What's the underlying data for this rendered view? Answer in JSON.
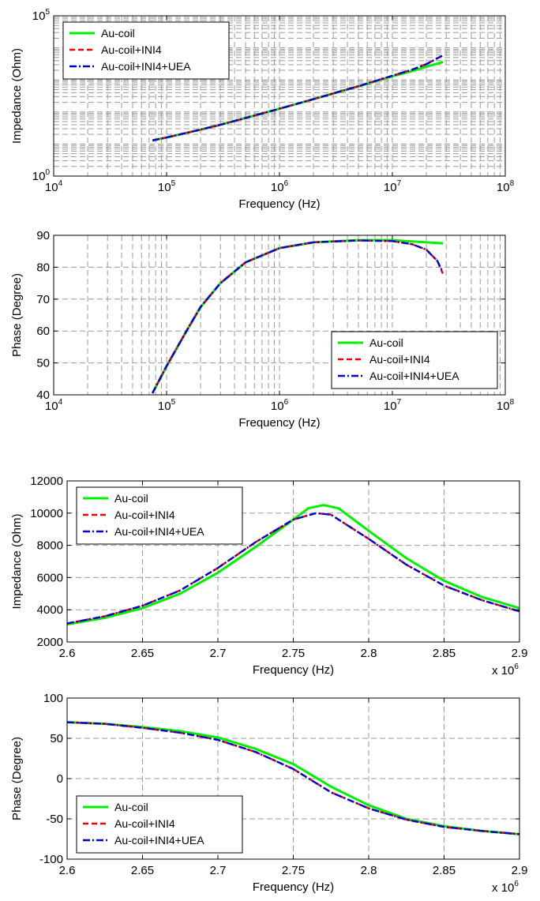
{
  "colors": {
    "series": [
      "#00ee00",
      "#ee0000",
      "#0000cc"
    ],
    "grid": "#9a9a9a",
    "axes": "#000000",
    "background": "#ffffff"
  },
  "chart_data": [
    {
      "type": "line",
      "xscale": "log",
      "yscale": "log",
      "xlim": [
        10000,
        100000000
      ],
      "ylim": [
        1,
        100000
      ],
      "xlabel": "Frequency (Hz)",
      "ylabel": "Impedance (Ohm)",
      "xticks": [
        10000,
        100000,
        1000000,
        10000000,
        100000000
      ],
      "xtick_labels": [
        {
          "base": "10",
          "exp": "4"
        },
        {
          "base": "10",
          "exp": "5"
        },
        {
          "base": "10",
          "exp": "6"
        },
        {
          "base": "10",
          "exp": "7"
        },
        {
          "base": "10",
          "exp": "8"
        }
      ],
      "yticks": [
        1,
        100000
      ],
      "ytick_labels": [
        {
          "base": "10",
          "exp": "0"
        },
        {
          "base": "10",
          "exp": "5"
        }
      ],
      "x_multiplier": "",
      "grid": true,
      "legend_position": "top-left",
      "legend": [
        "Au-coil",
        "Au-coil+INI4",
        "Au-coil+INI4+UEA"
      ],
      "series": [
        {
          "name": "Au-coil",
          "style": "solid",
          "x": [
            75000,
            100000,
            200000,
            300000,
            500000,
            1000000,
            2000000,
            5000000,
            10000000,
            15000000,
            20000000,
            28000000
          ],
          "y": [
            13,
            16,
            28,
            40,
            65,
            126,
            250,
            630,
            1300,
            1900,
            2600,
            3600
          ]
        },
        {
          "name": "Au-coil+INI4",
          "style": "dashed",
          "x": [
            75000,
            100000,
            200000,
            300000,
            500000,
            1000000,
            2000000,
            5000000,
            10000000,
            15000000,
            20000000,
            28000000
          ],
          "y": [
            13,
            16,
            28,
            40,
            65,
            126,
            250,
            640,
            1350,
            2100,
            3100,
            5800
          ]
        },
        {
          "name": "Au-coil+INI4+UEA",
          "style": "dashdot",
          "x": [
            75000,
            100000,
            200000,
            300000,
            500000,
            1000000,
            2000000,
            5000000,
            10000000,
            15000000,
            20000000,
            28000000
          ],
          "y": [
            13,
            16,
            28,
            40,
            65,
            126,
            250,
            640,
            1350,
            2100,
            3100,
            5800
          ]
        }
      ]
    },
    {
      "type": "line",
      "xscale": "log",
      "yscale": "linear",
      "xlim": [
        10000,
        100000000
      ],
      "ylim": [
        40,
        90
      ],
      "xlabel": "Frequency (Hz)",
      "ylabel": "Phase (Degree)",
      "xticks": [
        10000,
        100000,
        1000000,
        10000000,
        100000000
      ],
      "xtick_labels": [
        {
          "base": "10",
          "exp": "4"
        },
        {
          "base": "10",
          "exp": "5"
        },
        {
          "base": "10",
          "exp": "6"
        },
        {
          "base": "10",
          "exp": "7"
        },
        {
          "base": "10",
          "exp": "8"
        }
      ],
      "yticks": [
        40,
        50,
        60,
        70,
        80,
        90
      ],
      "ytick_labels": [
        {
          "base": "40",
          "exp": ""
        },
        {
          "base": "50",
          "exp": ""
        },
        {
          "base": "60",
          "exp": ""
        },
        {
          "base": "70",
          "exp": ""
        },
        {
          "base": "80",
          "exp": ""
        },
        {
          "base": "90",
          "exp": ""
        }
      ],
      "x_multiplier": "",
      "grid": true,
      "legend_position": "bottom-right",
      "legend": [
        "Au-coil",
        "Au-coil+INI4",
        "Au-coil+INI4+UEA"
      ],
      "series": [
        {
          "name": "Au-coil",
          "style": "solid",
          "x": [
            75000,
            100000,
            150000,
            200000,
            300000,
            500000,
            1000000,
            2000000,
            5000000,
            10000000,
            20000000,
            28000000
          ],
          "y": [
            40.5,
            49,
            60,
            67.5,
            75,
            81.5,
            86,
            87.8,
            88.5,
            88.5,
            87.8,
            87.5
          ]
        },
        {
          "name": "Au-coil+INI4",
          "style": "dashed",
          "x": [
            75000,
            100000,
            150000,
            200000,
            300000,
            500000,
            1000000,
            2000000,
            5000000,
            10000000,
            15000000,
            20000000,
            25000000,
            28000000
          ],
          "y": [
            40.5,
            49,
            60,
            67.5,
            75,
            81.5,
            86,
            87.8,
            88.4,
            88.2,
            87.2,
            85.5,
            82,
            78
          ]
        },
        {
          "name": "Au-coil+INI4+UEA",
          "style": "dashdot",
          "x": [
            75000,
            100000,
            150000,
            200000,
            300000,
            500000,
            1000000,
            2000000,
            5000000,
            10000000,
            15000000,
            20000000,
            25000000,
            28000000
          ],
          "y": [
            40.5,
            49,
            60,
            67.5,
            75,
            81.5,
            86,
            87.8,
            88.4,
            88.2,
            87.2,
            85.5,
            82,
            78.5
          ]
        }
      ]
    },
    {
      "type": "line",
      "xscale": "linear",
      "yscale": "linear",
      "xlim": [
        2.6,
        2.9
      ],
      "ylim": [
        2000,
        12000
      ],
      "xlabel": "Frequency (Hz)",
      "ylabel": "Impedance (Ohm)",
      "xticks": [
        2.6,
        2.65,
        2.7,
        2.75,
        2.8,
        2.85,
        2.9
      ],
      "xtick_labels": [
        {
          "base": "2.6",
          "exp": ""
        },
        {
          "base": "2.65",
          "exp": ""
        },
        {
          "base": "2.7",
          "exp": ""
        },
        {
          "base": "2.75",
          "exp": ""
        },
        {
          "base": "2.8",
          "exp": ""
        },
        {
          "base": "2.85",
          "exp": ""
        },
        {
          "base": "2.9",
          "exp": ""
        }
      ],
      "yticks": [
        2000,
        4000,
        6000,
        8000,
        10000,
        12000
      ],
      "ytick_labels": [
        {
          "base": "2000",
          "exp": ""
        },
        {
          "base": "4000",
          "exp": ""
        },
        {
          "base": "6000",
          "exp": ""
        },
        {
          "base": "8000",
          "exp": ""
        },
        {
          "base": "10000",
          "exp": ""
        },
        {
          "base": "12000",
          "exp": ""
        }
      ],
      "x_multiplier": {
        "base": "x 10",
        "exp": "6"
      },
      "grid": true,
      "legend_position": "top-left",
      "legend": [
        "Au-coil",
        "Au-coil+INI4",
        "Au-coil+INI4+UEA"
      ],
      "series": [
        {
          "name": "Au-coil",
          "style": "solid",
          "x": [
            2.6,
            2.625,
            2.65,
            2.675,
            2.7,
            2.725,
            2.75,
            2.76,
            2.77,
            2.78,
            2.8,
            2.825,
            2.85,
            2.875,
            2.9
          ],
          "y": [
            3100,
            3500,
            4100,
            5000,
            6300,
            7900,
            9600,
            10300,
            10500,
            10300,
            8900,
            7200,
            5800,
            4800,
            4100
          ]
        },
        {
          "name": "Au-coil+INI4",
          "style": "dashed",
          "x": [
            2.6,
            2.625,
            2.65,
            2.675,
            2.7,
            2.725,
            2.75,
            2.765,
            2.775,
            2.8,
            2.825,
            2.85,
            2.875,
            2.9
          ],
          "y": [
            3150,
            3600,
            4250,
            5200,
            6600,
            8200,
            9600,
            10000,
            9900,
            8400,
            6800,
            5500,
            4600,
            3900
          ]
        },
        {
          "name": "Au-coil+INI4+UEA",
          "style": "dashdot",
          "x": [
            2.6,
            2.625,
            2.65,
            2.675,
            2.7,
            2.725,
            2.75,
            2.765,
            2.775,
            2.8,
            2.825,
            2.85,
            2.875,
            2.9
          ],
          "y": [
            3150,
            3600,
            4250,
            5200,
            6600,
            8200,
            9600,
            10000,
            9900,
            8400,
            6800,
            5500,
            4600,
            3900
          ]
        }
      ]
    },
    {
      "type": "line",
      "xscale": "linear",
      "yscale": "linear",
      "xlim": [
        2.6,
        2.9
      ],
      "ylim": [
        -100,
        100
      ],
      "xlabel": "Frequency (Hz)",
      "ylabel": "Phase (Degree)",
      "xticks": [
        2.6,
        2.65,
        2.7,
        2.75,
        2.8,
        2.85,
        2.9
      ],
      "xtick_labels": [
        {
          "base": "2.6",
          "exp": ""
        },
        {
          "base": "2.65",
          "exp": ""
        },
        {
          "base": "2.7",
          "exp": ""
        },
        {
          "base": "2.75",
          "exp": ""
        },
        {
          "base": "2.8",
          "exp": ""
        },
        {
          "base": "2.85",
          "exp": ""
        },
        {
          "base": "2.9",
          "exp": ""
        }
      ],
      "yticks": [
        -100,
        -50,
        0,
        50,
        100
      ],
      "ytick_labels": [
        {
          "base": "-100",
          "exp": ""
        },
        {
          "base": "-50",
          "exp": ""
        },
        {
          "base": "0",
          "exp": ""
        },
        {
          "base": "50",
          "exp": ""
        },
        {
          "base": "100",
          "exp": ""
        }
      ],
      "x_multiplier": {
        "base": "x 10",
        "exp": "6"
      },
      "grid": true,
      "legend_position": "bottom-left",
      "legend": [
        "Au-coil",
        "Au-coil+INI4",
        "Au-coil+INI4+UEA"
      ],
      "series": [
        {
          "name": "Au-coil",
          "style": "solid",
          "x": [
            2.6,
            2.625,
            2.65,
            2.675,
            2.7,
            2.725,
            2.75,
            2.775,
            2.8,
            2.825,
            2.85,
            2.875,
            2.9
          ],
          "y": [
            70,
            68,
            64,
            59,
            51,
            37,
            18,
            -10,
            -33,
            -50,
            -59,
            -65,
            -69
          ]
        },
        {
          "name": "Au-coil+INI4",
          "style": "dashed",
          "x": [
            2.6,
            2.625,
            2.65,
            2.675,
            2.7,
            2.725,
            2.75,
            2.775,
            2.8,
            2.825,
            2.85,
            2.875,
            2.9
          ],
          "y": [
            70,
            68,
            63,
            57,
            48,
            33,
            12,
            -17,
            -37,
            -51,
            -60,
            -65,
            -69
          ]
        },
        {
          "name": "Au-coil+INI4+UEA",
          "style": "dashdot",
          "x": [
            2.6,
            2.625,
            2.65,
            2.675,
            2.7,
            2.725,
            2.75,
            2.775,
            2.8,
            2.825,
            2.85,
            2.875,
            2.9
          ],
          "y": [
            70,
            68,
            63,
            57,
            48,
            33,
            12,
            -17,
            -37,
            -51,
            -60,
            -65,
            -69
          ]
        }
      ]
    }
  ]
}
